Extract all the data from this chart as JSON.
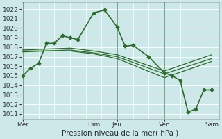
{
  "title": "Pression niveau de la mer( hPa )",
  "bg_color": "#cce8e8",
  "grid_color": "#ffffff",
  "line_color": "#2d6b2d",
  "ylim": [
    1010.5,
    1022.7
  ],
  "yticks": [
    1011,
    1012,
    1013,
    1014,
    1015,
    1016,
    1017,
    1018,
    1019,
    1020,
    1021,
    1022
  ],
  "xtick_labels": [
    "Mer",
    "Dim",
    "Jeu",
    "Ven",
    "Sam"
  ],
  "xtick_positions": [
    0,
    4.5,
    6.0,
    9.0,
    12.0
  ],
  "vlines": [
    0,
    4.5,
    6.0,
    9.0,
    12.0
  ],
  "xlim": [
    -0.1,
    12.5
  ],
  "series": [
    {
      "x": [
        0,
        0.5,
        1.0,
        1.5,
        2.0,
        2.5,
        3.0,
        3.5,
        4.5,
        5.2,
        6.0,
        6.5,
        7.0,
        8.0,
        9.0,
        9.5,
        10.0,
        10.5,
        11.0,
        11.5,
        12.0
      ],
      "y": [
        1015.0,
        1015.8,
        1016.3,
        1018.4,
        1018.4,
        1019.2,
        1019.0,
        1018.8,
        1021.6,
        1021.9,
        1020.1,
        1018.1,
        1018.2,
        1017.0,
        1015.3,
        1015.0,
        1014.5,
        1011.2,
        1011.5,
        1013.5,
        1013.5
      ],
      "marker": "D",
      "markersize": 2.5,
      "linewidth": 1.2
    },
    {
      "x": [
        0,
        3.0,
        4.5,
        6.0,
        9.0,
        12.0
      ],
      "y": [
        1017.7,
        1017.9,
        1017.6,
        1017.2,
        1015.5,
        1017.2
      ],
      "marker": null,
      "markersize": 0,
      "linewidth": 0.9
    },
    {
      "x": [
        0,
        3.0,
        4.5,
        6.0,
        9.0,
        12.0
      ],
      "y": [
        1017.5,
        1017.7,
        1017.4,
        1017.0,
        1015.2,
        1016.8
      ],
      "marker": null,
      "markersize": 0,
      "linewidth": 0.9
    },
    {
      "x": [
        0,
        3.0,
        4.5,
        6.0,
        9.0,
        12.0
      ],
      "y": [
        1017.6,
        1017.6,
        1017.3,
        1016.8,
        1014.8,
        1016.5
      ],
      "marker": null,
      "markersize": 0,
      "linewidth": 0.9
    }
  ]
}
